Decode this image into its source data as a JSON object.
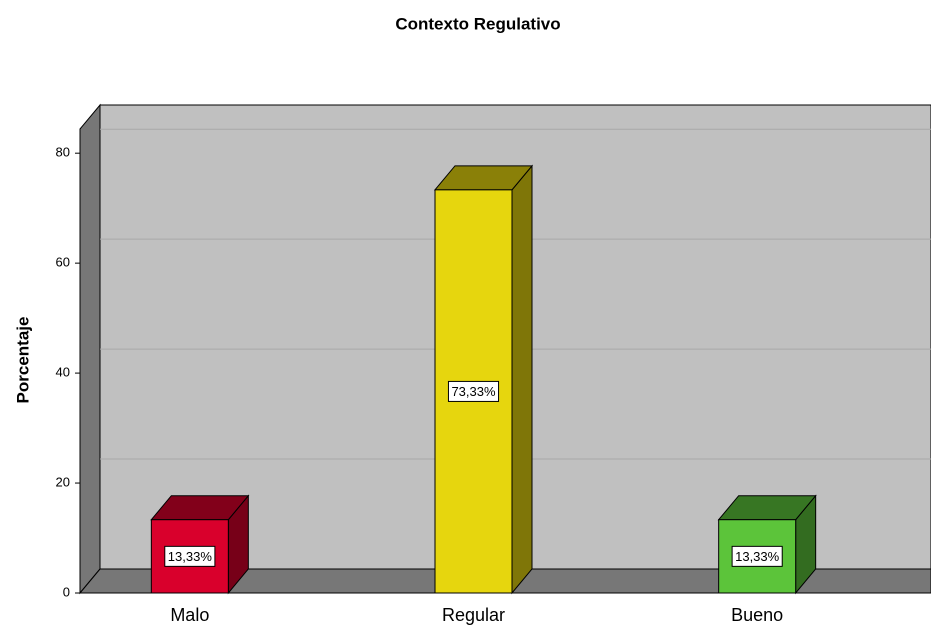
{
  "chart_data": {
    "type": "bar3d",
    "title": "Contexto Regulativo",
    "y_label": "Porcentaje",
    "categories": [
      "Malo",
      "Regular",
      "Bueno"
    ],
    "values": [
      13.33,
      73.33,
      13.33
    ],
    "value_labels": [
      "13,33%",
      "73,33%",
      "13,33%"
    ],
    "colors": [
      "#d9002c",
      "#e6d60e",
      "#5cc43a"
    ],
    "ylim": [
      0,
      84.4
    ],
    "yticks": [
      0,
      20,
      40,
      60,
      80
    ],
    "grid": true
  }
}
